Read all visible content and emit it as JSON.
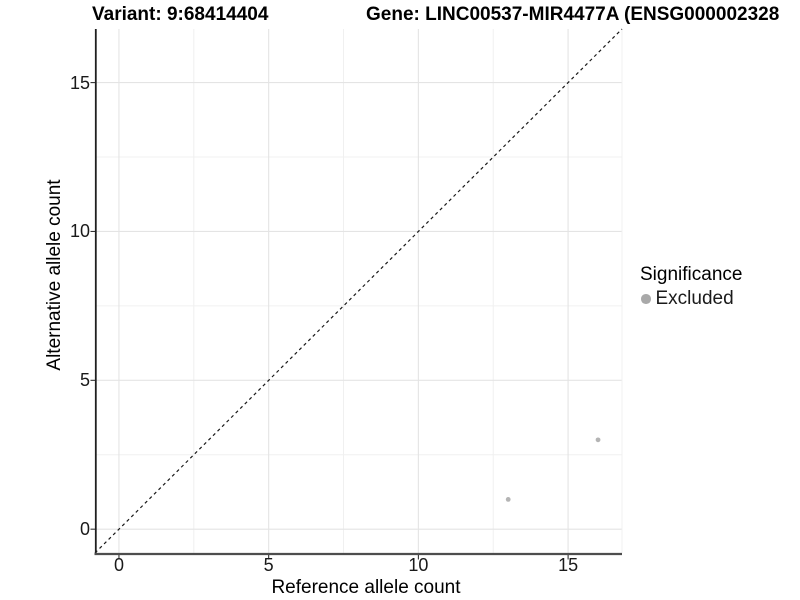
{
  "header": {
    "variant_label": "Variant: 9:68414404",
    "gene_label": "Gene: LINC00537-MIR4477A (ENSG000002328"
  },
  "legend": {
    "title": "Significance",
    "items": [
      {
        "label": "Excluded",
        "color": "#a9a9a9"
      }
    ]
  },
  "colors": {
    "point": "#b4b4b4",
    "grid_major": "#e4e4e4",
    "grid_minor": "#f0f0f0",
    "axis_line_left": "#1f1f1f",
    "axis_line_bottom": "#4d4d4d",
    "tick_mark": "#333333",
    "diagonal": "#1a1a1a"
  },
  "chart_data": {
    "type": "scatter",
    "title": "Variant: 9:68414404   Gene: LINC00537-MIR4477A (ENSG000002328",
    "xlabel": "Reference allele count",
    "ylabel": "Alternative allele count",
    "xlim": [
      -0.8,
      16.8
    ],
    "ylim": [
      -0.8,
      16.8
    ],
    "x_ticks": [
      0,
      5,
      10,
      15
    ],
    "y_ticks": [
      0,
      5,
      10,
      15
    ],
    "x_minor_ticks": [
      2.5,
      7.5,
      12.5
    ],
    "y_minor_ticks": [
      2.5,
      7.5,
      12.5
    ],
    "grid": true,
    "legend_position": "right",
    "legend_title": "Significance",
    "series": [
      {
        "name": "Excluded",
        "color": "#b4b4b4",
        "point_radius": 2.4,
        "points": [
          {
            "x": 13,
            "y": 1
          },
          {
            "x": 16,
            "y": 3
          }
        ]
      }
    ],
    "reference_line": {
      "type": "identity y=x",
      "style": "dashed",
      "color": "#1a1a1a"
    }
  }
}
